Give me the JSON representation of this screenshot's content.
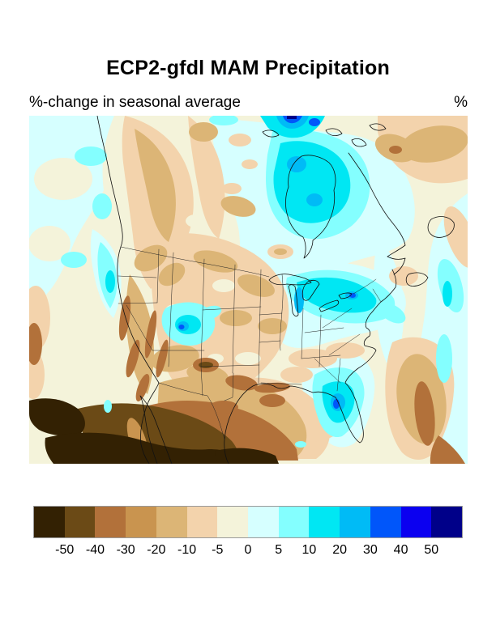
{
  "figure": {
    "title": "ECP2-gfdl MAM Precipitation",
    "subtitle": "%-change in seasonal average",
    "unit_label": "%"
  },
  "colorbar": {
    "tick_labels": [
      "-50",
      "-40",
      "-30",
      "-20",
      "-10",
      "-5",
      "0",
      "5",
      "10",
      "20",
      "30",
      "40",
      "50"
    ],
    "colors": [
      "#332103",
      "#6b4a16",
      "#b2713a",
      "#c9944f",
      "#dcb576",
      "#f3d3ac",
      "#f4f3da",
      "#d6ffff",
      "#84ffff",
      "#00e7f3",
      "#00bbf6",
      "#0056fa",
      "#0b00f0",
      "#000089"
    ]
  },
  "chart_data": {
    "type": "heatmap",
    "title": "ECP2-gfdl MAM Precipitation",
    "subtitle": "%-change in seasonal average",
    "units": "%",
    "region": "North America (Canada, contiguous US, Mexico, adjacent Pacific and Atlantic)",
    "legend_position": "bottom",
    "colorbar_levels": [
      -50,
      -40,
      -30,
      -20,
      -10,
      -5,
      0,
      5,
      10,
      20,
      30,
      40,
      50
    ],
    "colorbar_colors": [
      "#332103",
      "#6b4a16",
      "#b2713a",
      "#c9944f",
      "#dcb576",
      "#f3d3ac",
      "#f4f3da",
      "#d6ffff",
      "#84ffff",
      "#00e7f3",
      "#00bbf6",
      "#0056fa",
      "#0b00f0",
      "#000089"
    ],
    "notable_patterns": [
      "Strong drying below -40% over Mexico, Baja California and the subtropical eastern Pacific (near-black browns at bottom left)",
      "Drying of -10% to -30% across California, the Great Basin, the southern Plains, Texas and interior British Columbia",
      "Wetting of +5% to +20% over Hudson Bay and central-eastern Canada, with small +30% to +50% cores near Baffin Island at the top edge",
      "Wetting of +10% to +30% over the Great Lakes, Ohio Valley and northeastern United States",
      "Local wet maxima (+20% to +40%) over Florida and over the Utah/Wyoming Rockies",
      "Dry band (-10% to -30%) over the western Atlantic east of Florida and in the far upper-right corner",
      "Near-zero to weakly dry conditions (cream and pale-peach) over the central Plains and Southeast"
    ]
  }
}
